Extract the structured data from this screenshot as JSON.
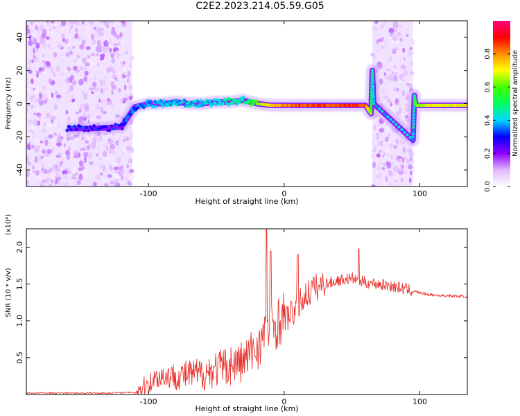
{
  "figure": {
    "title": "C2E2.2023.214.05.59.G05"
  },
  "colorbar": {
    "label": "Normalized spectral amplitude",
    "range": [
      0,
      1
    ],
    "ticks": [
      0.0,
      0.2,
      0.4,
      0.6,
      0.8
    ],
    "tick_labels": [
      "0.0",
      "0.2",
      "0.4",
      "0.6",
      "0.8"
    ],
    "colormap": [
      "#ffffff",
      "#e0b8ff",
      "#9000ff",
      "#0000ff",
      "#00d8ff",
      "#00ff60",
      "#40ff00",
      "#ffff00",
      "#ff9000",
      "#ff0000",
      "#ff0080"
    ]
  },
  "chart_data": [
    {
      "type": "heatmap",
      "title": "",
      "xlabel": "Height of straight line (km)",
      "ylabel": "Frequency (Hz)",
      "xlim": [
        -190,
        135
      ],
      "ylim": [
        -50,
        50
      ],
      "xticks": [
        -100,
        0,
        100
      ],
      "xtick_labels": [
        "-100",
        "0",
        "100"
      ],
      "yticks": [
        -40,
        -20,
        0,
        20,
        40
      ],
      "ytick_labels": [
        "-40",
        "-20",
        "0",
        "20",
        "40"
      ],
      "grid": false,
      "noise_regions_x": [
        [
          -190,
          -112
        ],
        [
          65,
          95
        ]
      ],
      "ridge": {
        "x": [
          -160,
          -140,
          -120,
          -110,
          -100,
          -90,
          -80,
          -70,
          -60,
          -50,
          -40,
          -30,
          -20,
          -10,
          0,
          10,
          20,
          30,
          40,
          50,
          60,
          64,
          65,
          66,
          95,
          96,
          97,
          100,
          110,
          120,
          135
        ],
        "y": [
          -15,
          -15,
          -14,
          -2,
          0,
          0,
          1,
          0,
          0,
          1,
          1,
          2,
          0,
          -1,
          -1,
          -1,
          -1,
          -1,
          -1,
          -1,
          -1,
          -6,
          20,
          0,
          -22,
          5,
          -1,
          -1,
          -1,
          -1,
          -1
        ],
        "amplitude": [
          0.3,
          0.3,
          0.3,
          0.35,
          0.35,
          0.4,
          0.4,
          0.4,
          0.4,
          0.4,
          0.45,
          0.45,
          0.6,
          0.75,
          0.8,
          0.85,
          0.85,
          0.85,
          0.85,
          0.85,
          0.85,
          0.6,
          0.45,
          0.4,
          0.4,
          0.45,
          0.6,
          0.65,
          0.7,
          0.7,
          0.7
        ]
      }
    },
    {
      "type": "line",
      "title": "",
      "xlabel": "Height of straight line (km)",
      "ylabel": "SNR (10 * v/v)",
      "scale_label": "(x10⁴)",
      "xlim": [
        -190,
        135
      ],
      "ylim": [
        0,
        2.25
      ],
      "xticks": [
        -100,
        0,
        100
      ],
      "xtick_labels": [
        "-100",
        "0",
        "100"
      ],
      "yticks": [
        0.5,
        1.0,
        1.5,
        2.0
      ],
      "ytick_labels": [
        "0.5",
        "1.0",
        "1.5",
        "2.0"
      ],
      "grid": false,
      "series": [
        {
          "color": "#e8332e",
          "x": [
            -190,
            -160,
            -130,
            -110,
            -100,
            -95,
            -90,
            -80,
            -70,
            -60,
            -50,
            -40,
            -30,
            -25,
            -20,
            -15,
            -10,
            -5,
            0,
            5,
            10,
            15,
            20,
            30,
            40,
            50,
            55,
            60,
            70,
            80,
            90,
            100,
            110,
            120,
            135
          ],
          "values": [
            0.02,
            0.02,
            0.02,
            0.03,
            0.15,
            0.22,
            0.25,
            0.25,
            0.27,
            0.28,
            0.35,
            0.4,
            0.45,
            0.55,
            0.65,
            0.78,
            0.9,
            0.98,
            1.05,
            1.08,
            1.2,
            1.33,
            1.42,
            1.5,
            1.55,
            1.58,
            1.55,
            1.52,
            1.5,
            1.47,
            1.43,
            1.38,
            1.35,
            1.34,
            1.33
          ],
          "spikes": [
            [
              -13,
              2.25
            ],
            [
              -10,
              1.95
            ],
            [
              10,
              1.9
            ],
            [
              55,
              1.98
            ]
          ]
        }
      ]
    }
  ]
}
